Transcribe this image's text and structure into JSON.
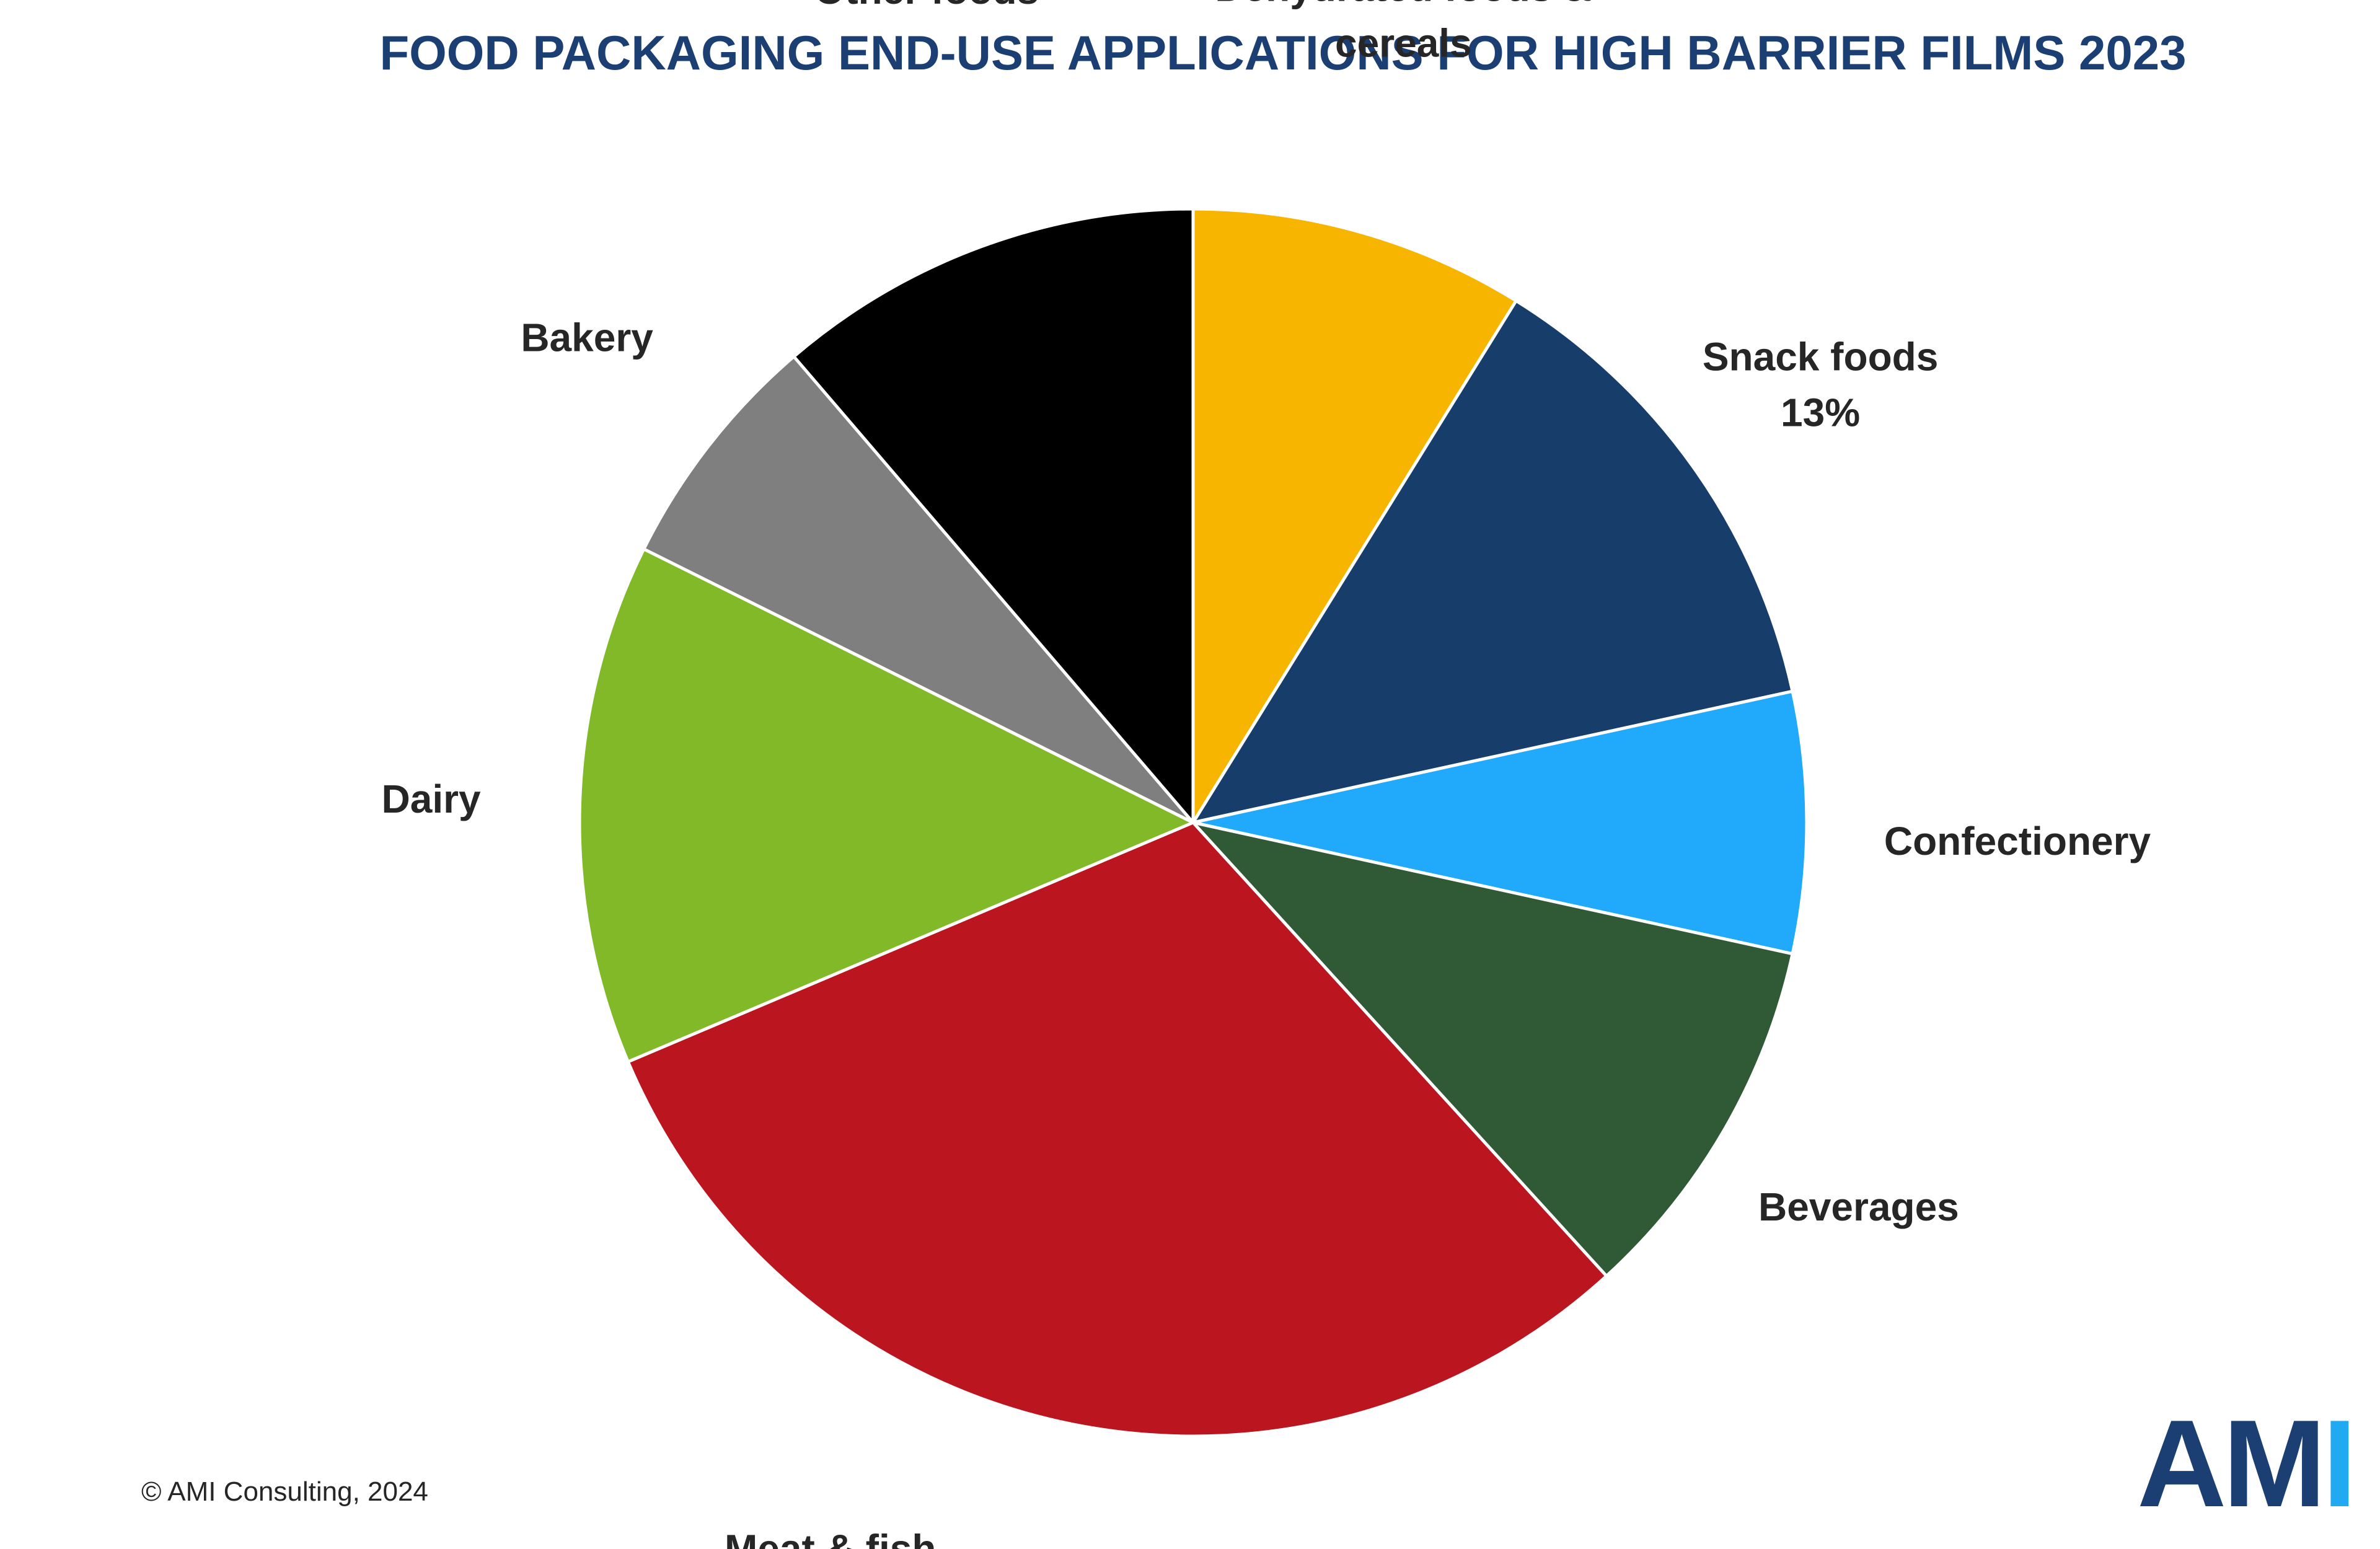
{
  "title": "FOOD PACKAGING END-USE APPLICATIONS FOR HIGH BARRIER FILMS 2023",
  "copyright": "© AMI Consulting, 2024",
  "logo": {
    "part1": "AM",
    "part2": "I",
    "color_primary": "#1b3f73",
    "color_accent": "#21a9f1"
  },
  "chart_data": {
    "type": "pie",
    "title": "FOOD PACKAGING END-USE APPLICATIONS FOR HIGH BARRIER FILMS 2023",
    "start": "12 o'clock",
    "direction": "clockwise",
    "slices": [
      {
        "name": "Dehydrated foods & cereals",
        "label_lines": [
          "Dehydrated foods &",
          "cereals"
        ],
        "value": 9,
        "color": "#f7b500"
      },
      {
        "name": "Snack foods",
        "label_lines": [
          "Snack foods",
          "13%"
        ],
        "value": 13,
        "color": "#173e6b"
      },
      {
        "name": "Confectionery",
        "label_lines": [
          "Confectionery"
        ],
        "value": 7,
        "color": "#21a9fb"
      },
      {
        "name": "Beverages",
        "label_lines": [
          "Beverages"
        ],
        "value": 10,
        "color": "#2f5a35"
      },
      {
        "name": "Meat & fish",
        "label_lines": [
          "Meat & fish"
        ],
        "value": 31,
        "color": "#bb1620"
      },
      {
        "name": "Dairy",
        "label_lines": [
          "Dairy"
        ],
        "value": 14,
        "color": "#82b929"
      },
      {
        "name": "Bakery",
        "label_lines": [
          "Bakery"
        ],
        "value": 6.5,
        "color": "#7f7f7f"
      },
      {
        "name": "Other foods",
        "label_lines": [
          "Other foods"
        ],
        "value": 11.5,
        "color": "#000000"
      }
    ]
  }
}
